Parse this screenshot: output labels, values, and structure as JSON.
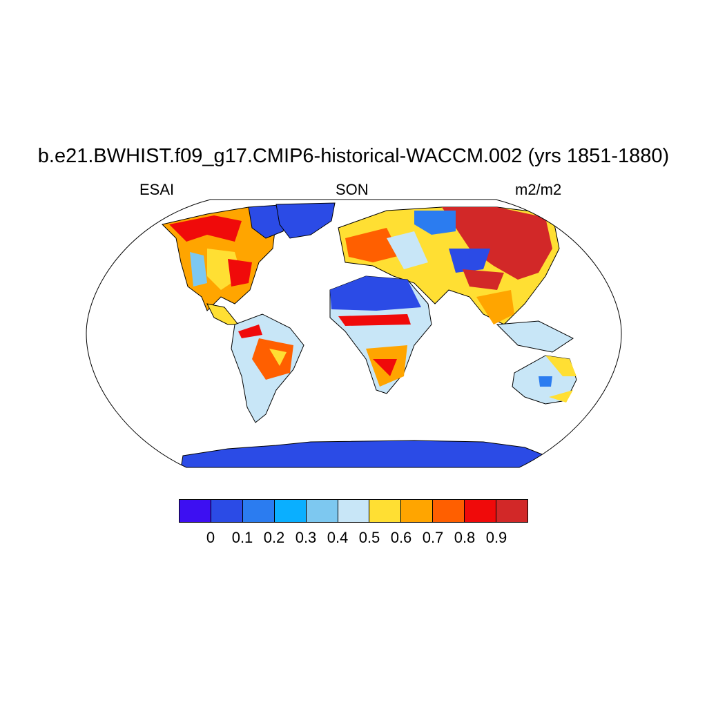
{
  "title": "b.e21.BWHIST.f09_g17.CMIP6-historical-WACCM.002 (yrs 1851-1880)",
  "left_label": "ESAI",
  "center_label": "SON",
  "right_label": "m2/m2",
  "colorbar": {
    "colors": [
      "#3d0ff2",
      "#2b4be6",
      "#2b7cf0",
      "#0aafff",
      "#7dc8f0",
      "#c8e6f7",
      "#ffdf33",
      "#ffa500",
      "#ff5f00",
      "#f00a0a",
      "#d22828"
    ],
    "labels": [
      "0",
      "0.1",
      "0.2",
      "0.3",
      "0.4",
      "0.5",
      "0.6",
      "0.7",
      "0.8",
      "0.9"
    ]
  },
  "map": {
    "projection": "Robinson",
    "ocean_color": "#ffffff",
    "coastline_color": "#000000"
  }
}
